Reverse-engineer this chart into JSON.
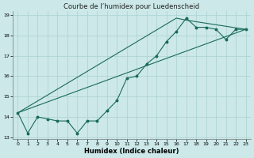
{
  "title": "Courbe de l’humidex pour Luedenscheid",
  "xlabel": "Humidex (Indice chaleur)",
  "x_values": [
    0,
    1,
    2,
    3,
    4,
    5,
    6,
    7,
    8,
    9,
    10,
    11,
    12,
    13,
    14,
    15,
    16,
    17,
    18,
    19,
    20,
    21,
    22,
    23
  ],
  "line1": [
    14.2,
    13.2,
    14.0,
    13.9,
    13.8,
    13.8,
    13.2,
    13.8,
    13.8,
    14.3,
    14.8,
    15.9,
    16.0,
    16.6,
    17.0,
    17.7,
    18.2,
    18.85,
    18.4,
    18.4,
    18.3,
    17.8,
    18.3,
    18.3
  ],
  "line2_x": [
    0,
    23
  ],
  "line2_y": [
    14.2,
    18.3
  ],
  "line3_x": [
    0,
    16,
    17,
    23
  ],
  "line3_y": [
    14.2,
    18.85,
    18.75,
    18.3
  ],
  "bg_color": "#cce8e8",
  "line_color": "#1a6b5a",
  "grid_color": "#aad0d0",
  "xlim": [
    -0.5,
    23.5
  ],
  "ylim": [
    12.9,
    19.2
  ],
  "yticks": [
    13,
    14,
    15,
    16,
    17,
    18,
    19
  ],
  "xticks": [
    0,
    1,
    2,
    3,
    4,
    5,
    6,
    7,
    8,
    9,
    10,
    11,
    12,
    13,
    14,
    15,
    16,
    17,
    18,
    19,
    20,
    21,
    22,
    23
  ],
  "title_fontsize": 6,
  "xlabel_fontsize": 6,
  "tick_fontsize": 4.5,
  "linewidth": 0.8,
  "markersize": 1.8
}
